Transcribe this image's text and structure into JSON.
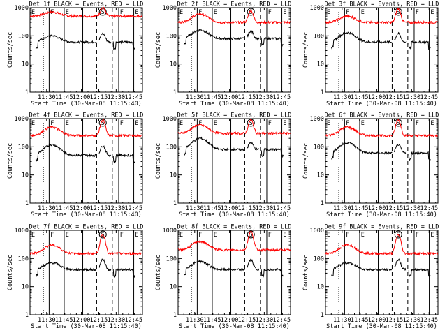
{
  "chart_data": {
    "type": "line",
    "grid": false,
    "shared": {
      "ylabel": "Counts/sec",
      "xlabel": "Start Time (30-Mar-08 11:15:40)",
      "x_tick_labels": [
        "11:30",
        "11:45",
        "12:00",
        "12:15",
        "12:30",
        "12:45"
      ],
      "x_ticks_min": [
        14.33,
        29.33,
        44.33,
        59.33,
        74.33,
        89.33
      ],
      "x_range_min": [
        0,
        97
      ],
      "y_scale": "log",
      "y_range": [
        1,
        1000
      ],
      "y_tick_labels": [
        "1",
        "10",
        "100",
        "1000"
      ],
      "y_tick_values": [
        1,
        10,
        100,
        1000
      ],
      "markers": [
        {
          "label": "E",
          "x_min": 0.6
        },
        {
          "label": "F",
          "x_min": 17.0
        },
        {
          "label": "E",
          "x_min": 30.0
        },
        {
          "label": "F",
          "x_min": 77.0
        },
        {
          "label": "E",
          "x_min": 90.0
        }
      ],
      "solid_lines_min": [
        16.5,
        29.5,
        45.5,
        76.5,
        89.5
      ],
      "dotted_lines_min": [
        11.5
      ],
      "dashed_lines_min": [
        57.5,
        71.0
      ],
      "circle_label": "S",
      "circle_x_min": 62.8
    },
    "panels": [
      {
        "title": "Det 1f BLACK = Events, RED = LLD",
        "series": [
          {
            "name": "LLD",
            "color": "#ff0000",
            "base": 500,
            "peak": 1000,
            "hump": 700
          },
          {
            "name": "Events",
            "color": "#000000",
            "base": 60,
            "peak": 120,
            "hump": 100
          }
        ]
      },
      {
        "title": "Det 2f BLACK = Events, RED = LLD",
        "series": [
          {
            "name": "LLD",
            "color": "#ff0000",
            "base": 300,
            "peak": 800,
            "hump": 600
          },
          {
            "name": "Events",
            "color": "#000000",
            "base": 80,
            "peak": 150,
            "hump": 160
          }
        ]
      },
      {
        "title": "Det 3f BLACK = Events, RED = LLD",
        "series": [
          {
            "name": "LLD",
            "color": "#ff0000",
            "base": 300,
            "peak": 900,
            "hump": 500
          },
          {
            "name": "Events",
            "color": "#000000",
            "base": 60,
            "peak": 120,
            "hump": 130
          }
        ]
      },
      {
        "title": "Det 4f BLACK = Events, RED = LLD",
        "series": [
          {
            "name": "LLD",
            "color": "#ff0000",
            "base": 250,
            "peak": 900,
            "hump": 500
          },
          {
            "name": "Events",
            "color": "#000000",
            "base": 50,
            "peak": 110,
            "hump": 120
          }
        ]
      },
      {
        "title": "Det 5f BLACK = Events, RED = LLD",
        "series": [
          {
            "name": "LLD",
            "color": "#ff0000",
            "base": 300,
            "peak": 900,
            "hump": 600
          },
          {
            "name": "Events",
            "color": "#000000",
            "base": 80,
            "peak": 140,
            "hump": 200
          }
        ]
      },
      {
        "title": "Det 6f BLACK = Events, RED = LLD",
        "series": [
          {
            "name": "LLD",
            "color": "#ff0000",
            "base": 250,
            "peak": 900,
            "hump": 500
          },
          {
            "name": "Events",
            "color": "#000000",
            "base": 60,
            "peak": 120,
            "hump": 140
          }
        ]
      },
      {
        "title": "Det 7f BLACK = Events, RED = LLD",
        "series": [
          {
            "name": "LLD",
            "color": "#ff0000",
            "base": 150,
            "peak": 700,
            "hump": 300
          },
          {
            "name": "Events",
            "color": "#000000",
            "base": 40,
            "peak": 90,
            "hump": 70
          }
        ]
      },
      {
        "title": "Det 8f BLACK = Events, RED = LLD",
        "series": [
          {
            "name": "LLD",
            "color": "#ff0000",
            "base": 200,
            "peak": 900,
            "hump": 400
          },
          {
            "name": "Events",
            "color": "#000000",
            "base": 40,
            "peak": 90,
            "hump": 80
          }
        ]
      },
      {
        "title": "Det 9f BLACK = Events, RED = LLD",
        "series": [
          {
            "name": "LLD",
            "color": "#ff0000",
            "base": 150,
            "peak": 700,
            "hump": 300
          },
          {
            "name": "Events",
            "color": "#000000",
            "base": 40,
            "peak": 90,
            "hump": 70
          }
        ]
      }
    ]
  }
}
